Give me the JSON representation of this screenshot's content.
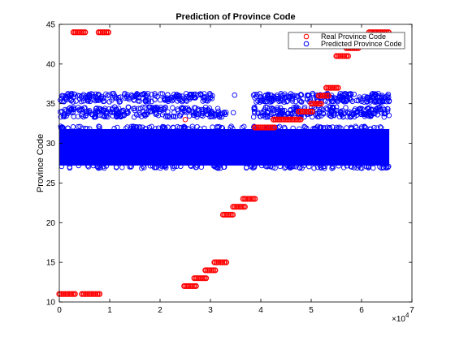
{
  "chart_data": {
    "type": "scatter",
    "title": "Prediction of Province Code",
    "xlabel": "",
    "ylabel": "Province Code",
    "xlim": [
      0,
      7
    ],
    "ylim": [
      10,
      45
    ],
    "x_scale_label": "×10",
    "x_scale_exponent": "4",
    "x_ticks": [
      0,
      1,
      2,
      3,
      4,
      5,
      6,
      7
    ],
    "y_ticks": [
      10,
      15,
      20,
      25,
      30,
      35,
      40,
      45
    ],
    "grid": false,
    "legend_position": "top-right",
    "series": [
      {
        "name": "Real Province Code",
        "color": "#ff0000",
        "marker": "open-circle",
        "segments": [
          {
            "x0": 0.0,
            "x1": 0.32,
            "y": 11
          },
          {
            "x0": 0.28,
            "x1": 0.52,
            "y": 44
          },
          {
            "x0": 0.45,
            "x1": 0.8,
            "y": 11
          },
          {
            "x0": 0.78,
            "x1": 1.0,
            "y": 44
          },
          {
            "x0": 2.48,
            "x1": 2.72,
            "y": 12
          },
          {
            "x0": 2.68,
            "x1": 2.95,
            "y": 13
          },
          {
            "x0": 2.9,
            "x1": 3.12,
            "y": 14
          },
          {
            "x0": 3.08,
            "x1": 3.32,
            "y": 15
          },
          {
            "x0": 3.25,
            "x1": 3.48,
            "y": 21
          },
          {
            "x0": 3.45,
            "x1": 3.7,
            "y": 22
          },
          {
            "x0": 3.65,
            "x1": 3.9,
            "y": 23
          },
          {
            "x0": 3.88,
            "x1": 4.3,
            "y": 32
          },
          {
            "x0": 4.25,
            "x1": 4.8,
            "y": 33
          },
          {
            "x0": 4.75,
            "x1": 5.05,
            "y": 34
          },
          {
            "x0": 5.0,
            "x1": 5.2,
            "y": 35
          },
          {
            "x0": 5.15,
            "x1": 5.35,
            "y": 36
          },
          {
            "x0": 5.3,
            "x1": 5.55,
            "y": 37
          },
          {
            "x0": 5.5,
            "x1": 5.75,
            "y": 41
          },
          {
            "x0": 5.7,
            "x1": 5.95,
            "y": 42
          },
          {
            "x0": 5.9,
            "x1": 6.2,
            "y": 43
          },
          {
            "x0": 6.15,
            "x1": 6.55,
            "y": 44
          }
        ],
        "isolated_points": [
          {
            "x": 2.5,
            "y": 33
          }
        ]
      },
      {
        "name": "Predicted Province Code",
        "color": "#0000ff",
        "marker": "open-circle",
        "dense_band": {
          "x0": 0.0,
          "x1": 6.55,
          "y0": 27.2,
          "y1": 31.8
        },
        "sparse_bands": [
          {
            "x0": 0.0,
            "x1": 6.55,
            "y0": 33.3,
            "y1": 34.6,
            "gap": [
              3.35,
              3.85
            ]
          },
          {
            "x0": 0.0,
            "x1": 6.55,
            "y0": 35.2,
            "y1": 36.3,
            "gap": [
              3.05,
              3.85
            ]
          }
        ]
      }
    ]
  }
}
